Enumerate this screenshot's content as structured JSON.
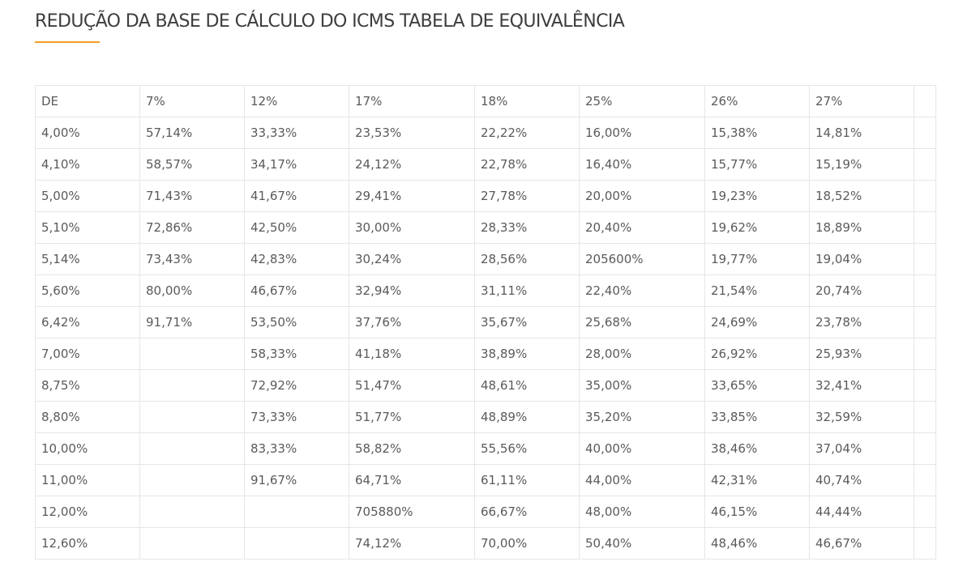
{
  "page": {
    "title": "REDUÇÃO DA BASE DE CÁLCULO DO ICMS TABELA DE EQUIVALÊNCIA"
  },
  "colors": {
    "accent": "#f0a01e",
    "text": "#5a5a5a",
    "border": "#e6e6e6"
  },
  "table": {
    "headers": [
      "DE",
      "7%",
      "12%",
      "17%",
      "18%",
      "25%",
      "26%",
      "27%",
      ""
    ],
    "rows": [
      [
        "4,00%",
        "57,14%",
        "33,33%",
        "23,53%",
        "22,22%",
        "16,00%",
        "15,38%",
        "14,81%"
      ],
      [
        "4,10%",
        "58,57%",
        "34,17%",
        "24,12%",
        "22,78%",
        "16,40%",
        "15,77%",
        "15,19%"
      ],
      [
        "5,00%",
        "71,43%",
        "41,67%",
        "29,41%",
        "27,78%",
        "20,00%",
        "19,23%",
        "18,52%"
      ],
      [
        "5,10%",
        "72,86%",
        "42,50%",
        "30,00%",
        "28,33%",
        "20,40%",
        "19,62%",
        "18,89%"
      ],
      [
        "5,14%",
        "73,43%",
        "42,83%",
        "30,24%",
        "28,56%",
        "205600%",
        "19,77%",
        "19,04%"
      ],
      [
        "5,60%",
        "80,00%",
        "46,67%",
        "32,94%",
        "31,11%",
        "22,40%",
        "21,54%",
        "20,74%"
      ],
      [
        "6,42%",
        "91,71%",
        "53,50%",
        "37,76%",
        "35,67%",
        "25,68%",
        "24,69%",
        "23,78%"
      ],
      [
        "7,00%",
        "",
        "58,33%",
        "41,18%",
        "38,89%",
        "28,00%",
        "26,92%",
        "25,93%"
      ],
      [
        "8,75%",
        "",
        "72,92%",
        "51,47%",
        "48,61%",
        "35,00%",
        "33,65%",
        "32,41%"
      ],
      [
        "8,80%",
        "",
        "73,33%",
        "51,77%",
        "48,89%",
        "35,20%",
        "33,85%",
        "32,59%"
      ],
      [
        "10,00%",
        "",
        "83,33%",
        "58,82%",
        "55,56%",
        "40,00%",
        "38,46%",
        "37,04%"
      ],
      [
        "11,00%",
        "",
        "91,67%",
        "64,71%",
        "61,11%",
        "44,00%",
        "42,31%",
        "40,74%"
      ],
      [
        "12,00%",
        "",
        "",
        "705880%",
        "66,67%",
        "48,00%",
        "46,15%",
        "44,44%"
      ],
      [
        "12,60%",
        "",
        "",
        "74,12%",
        "70,00%",
        "50,40%",
        "48,46%",
        "46,67%"
      ]
    ]
  }
}
